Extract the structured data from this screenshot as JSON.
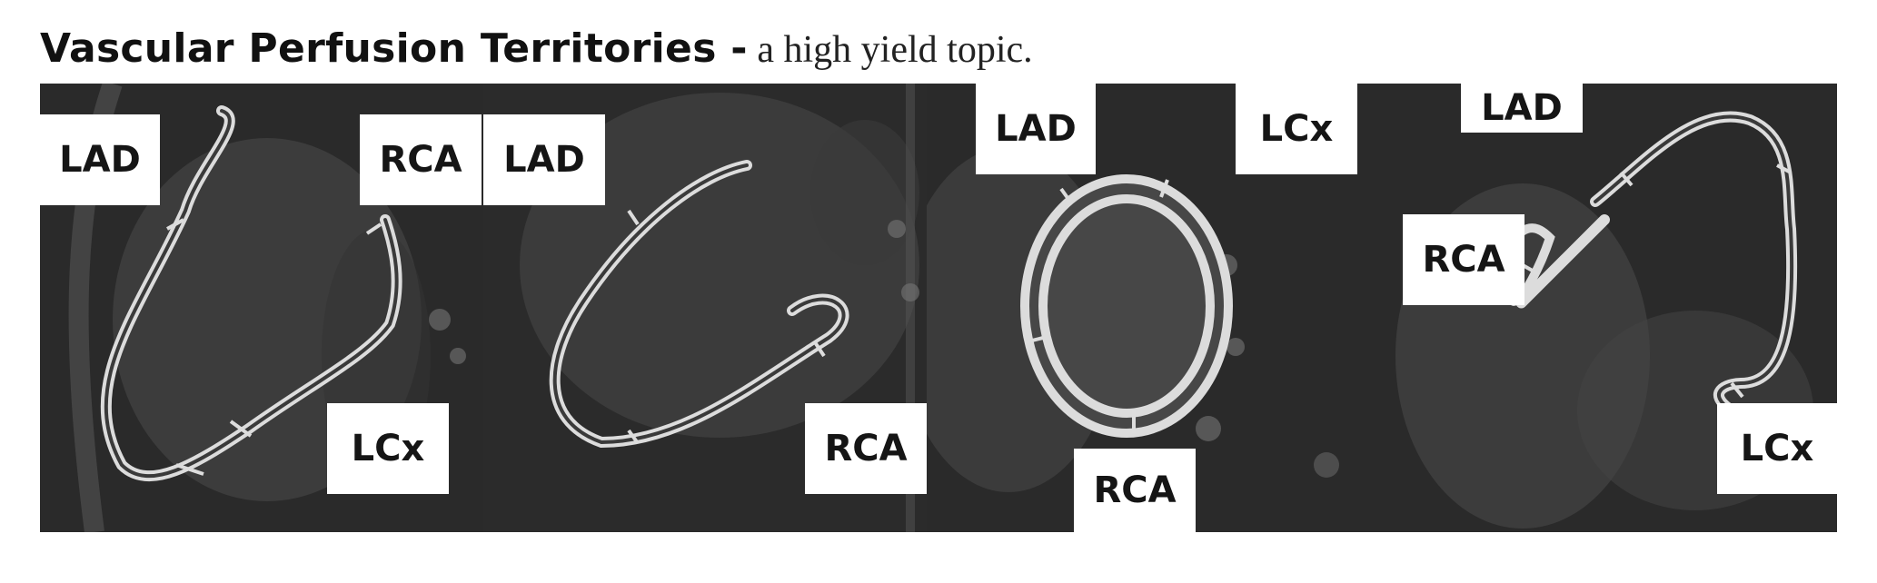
{
  "heading": {
    "title": "Vascular Perfusion Territories -",
    "subtitle": " a high yield topic."
  },
  "panels": [
    {
      "labels": [
        "LAD",
        "RCA",
        "LCx"
      ]
    },
    {
      "labels": [
        "LAD",
        "RCA"
      ]
    },
    {
      "labels": [
        "LAD",
        "LCx",
        "RCA"
      ]
    },
    {
      "labels": [
        "LAD",
        "RCA",
        "LCx"
      ]
    }
  ]
}
